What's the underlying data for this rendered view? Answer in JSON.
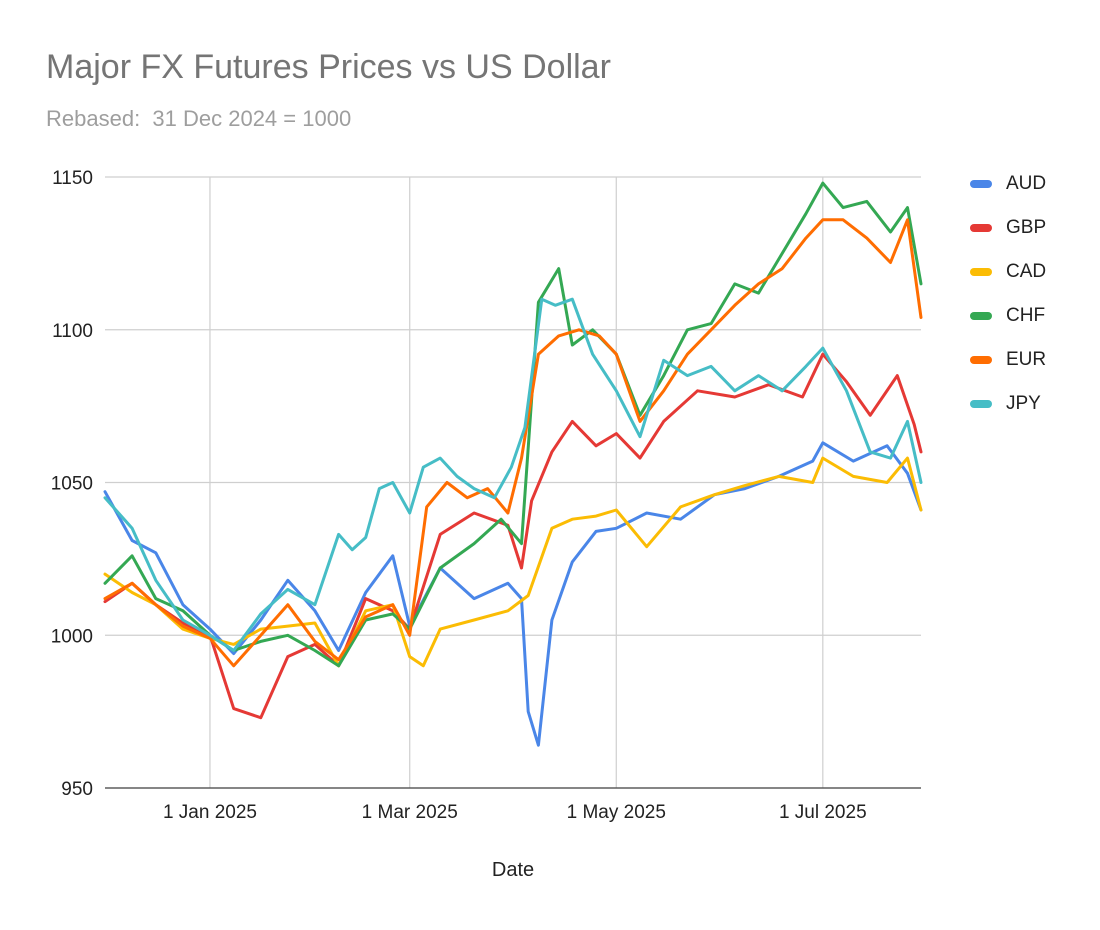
{
  "chart_data": {
    "type": "line",
    "title": "Major FX Futures Prices vs US Dollar",
    "subtitle": "Rebased:  31 Dec 2024 = 1000",
    "xlabel": "Date",
    "ylabel": "",
    "ylim": [
      950,
      1150
    ],
    "y_ticks": [
      950,
      1000,
      1050,
      1100,
      1150
    ],
    "x_ticks": [
      {
        "label": "1 Jan 2025",
        "date": "2025-01-01"
      },
      {
        "label": "1 Mar 2025",
        "date": "2025-03-01"
      },
      {
        "label": "1 May 2025",
        "date": "2025-05-01"
      },
      {
        "label": "1 Jul 2025",
        "date": "2025-07-01"
      }
    ],
    "x_range": [
      "2024-12-01",
      "2025-07-30"
    ],
    "grid": true,
    "legend_position": "right",
    "series": [
      {
        "name": "AUD",
        "color": "#4a86e8",
        "x": [
          "2024-12-01",
          "2024-12-09",
          "2024-12-16",
          "2024-12-24",
          "2025-01-01",
          "2025-01-08",
          "2025-01-16",
          "2025-01-24",
          "2025-02-01",
          "2025-02-08",
          "2025-02-16",
          "2025-02-24",
          "2025-03-01",
          "2025-03-10",
          "2025-03-20",
          "2025-03-30",
          "2025-04-03",
          "2025-04-05",
          "2025-04-08",
          "2025-04-12",
          "2025-04-18",
          "2025-04-25",
          "2025-05-01",
          "2025-05-10",
          "2025-05-20",
          "2025-05-30",
          "2025-06-08",
          "2025-06-18",
          "2025-06-28",
          "2025-07-01",
          "2025-07-10",
          "2025-07-20",
          "2025-07-26",
          "2025-07-30"
        ],
        "values": [
          1047,
          1031,
          1027,
          1010,
          1002,
          994,
          1005,
          1018,
          1008,
          995,
          1014,
          1026,
          1003,
          1022,
          1012,
          1017,
          1012,
          975,
          964,
          1005,
          1024,
          1034,
          1035,
          1040,
          1038,
          1046,
          1048,
          1052,
          1057,
          1063,
          1057,
          1062,
          1053,
          1041
        ]
      },
      {
        "name": "GBP",
        "color": "#e53935",
        "x": [
          "2024-12-01",
          "2024-12-09",
          "2024-12-16",
          "2024-12-24",
          "2025-01-01",
          "2025-01-08",
          "2025-01-16",
          "2025-01-24",
          "2025-02-01",
          "2025-02-08",
          "2025-02-16",
          "2025-02-24",
          "2025-03-01",
          "2025-03-10",
          "2025-03-20",
          "2025-03-30",
          "2025-04-03",
          "2025-04-06",
          "2025-04-12",
          "2025-04-18",
          "2025-04-25",
          "2025-05-01",
          "2025-05-08",
          "2025-05-15",
          "2025-05-25",
          "2025-06-05",
          "2025-06-15",
          "2025-06-25",
          "2025-07-01",
          "2025-07-08",
          "2025-07-15",
          "2025-07-23",
          "2025-07-28",
          "2025-07-30"
        ],
        "values": [
          1011,
          1017,
          1010,
          1004,
          1000,
          976,
          973,
          993,
          997,
          990,
          1012,
          1008,
          1002,
          1033,
          1040,
          1036,
          1022,
          1044,
          1060,
          1070,
          1062,
          1066,
          1058,
          1070,
          1080,
          1078,
          1082,
          1078,
          1092,
          1083,
          1072,
          1085,
          1069,
          1060
        ]
      },
      {
        "name": "CAD",
        "color": "#fbbc04",
        "x": [
          "2024-12-01",
          "2024-12-09",
          "2024-12-16",
          "2024-12-24",
          "2025-01-01",
          "2025-01-08",
          "2025-01-16",
          "2025-01-24",
          "2025-02-01",
          "2025-02-08",
          "2025-02-16",
          "2025-02-24",
          "2025-03-01",
          "2025-03-05",
          "2025-03-10",
          "2025-03-20",
          "2025-03-30",
          "2025-04-05",
          "2025-04-12",
          "2025-04-18",
          "2025-04-25",
          "2025-05-01",
          "2025-05-10",
          "2025-05-20",
          "2025-05-30",
          "2025-06-08",
          "2025-06-18",
          "2025-06-28",
          "2025-07-01",
          "2025-07-10",
          "2025-07-20",
          "2025-07-26",
          "2025-07-30"
        ],
        "values": [
          1020,
          1014,
          1010,
          1002,
          999,
          997,
          1002,
          1003,
          1004,
          990,
          1008,
          1010,
          993,
          990,
          1002,
          1005,
          1008,
          1013,
          1035,
          1038,
          1039,
          1041,
          1029,
          1042,
          1046,
          1049,
          1052,
          1050,
          1058,
          1052,
          1050,
          1058,
          1041
        ]
      },
      {
        "name": "CHF",
        "color": "#34a853",
        "x": [
          "2024-12-01",
          "2024-12-09",
          "2024-12-16",
          "2024-12-24",
          "2025-01-01",
          "2025-01-08",
          "2025-01-16",
          "2025-01-24",
          "2025-02-01",
          "2025-02-08",
          "2025-02-16",
          "2025-02-24",
          "2025-03-01",
          "2025-03-10",
          "2025-03-20",
          "2025-03-28",
          "2025-04-03",
          "2025-04-08",
          "2025-04-14",
          "2025-04-18",
          "2025-04-24",
          "2025-05-01",
          "2025-05-08",
          "2025-05-15",
          "2025-05-22",
          "2025-05-29",
          "2025-06-05",
          "2025-06-12",
          "2025-06-19",
          "2025-06-26",
          "2025-07-01",
          "2025-07-07",
          "2025-07-14",
          "2025-07-21",
          "2025-07-26",
          "2025-07-30"
        ],
        "values": [
          1017,
          1026,
          1012,
          1008,
          1000,
          995,
          998,
          1000,
          995,
          990,
          1005,
          1007,
          1002,
          1022,
          1030,
          1038,
          1030,
          1109,
          1120,
          1095,
          1100,
          1092,
          1072,
          1085,
          1100,
          1102,
          1115,
          1112,
          1125,
          1138,
          1148,
          1140,
          1142,
          1132,
          1140,
          1115
        ]
      },
      {
        "name": "EUR",
        "color": "#ff6d01",
        "x": [
          "2024-12-01",
          "2024-12-09",
          "2024-12-16",
          "2024-12-24",
          "2025-01-01",
          "2025-01-08",
          "2025-01-16",
          "2025-01-24",
          "2025-02-01",
          "2025-02-08",
          "2025-02-16",
          "2025-02-24",
          "2025-03-01",
          "2025-03-06",
          "2025-03-12",
          "2025-03-18",
          "2025-03-24",
          "2025-03-30",
          "2025-04-03",
          "2025-04-08",
          "2025-04-14",
          "2025-04-20",
          "2025-04-26",
          "2025-05-01",
          "2025-05-08",
          "2025-05-15",
          "2025-05-22",
          "2025-05-29",
          "2025-06-05",
          "2025-06-12",
          "2025-06-19",
          "2025-06-26",
          "2025-07-01",
          "2025-07-07",
          "2025-07-14",
          "2025-07-21",
          "2025-07-26",
          "2025-07-30"
        ],
        "values": [
          1012,
          1017,
          1010,
          1003,
          999,
          990,
          1000,
          1010,
          998,
          992,
          1006,
          1010,
          1000,
          1042,
          1050,
          1045,
          1048,
          1040,
          1058,
          1092,
          1098,
          1100,
          1098,
          1092,
          1070,
          1080,
          1092,
          1100,
          1108,
          1115,
          1120,
          1130,
          1136,
          1136,
          1130,
          1122,
          1136,
          1104
        ]
      },
      {
        "name": "JPY",
        "color": "#46bdc6",
        "x": [
          "2024-12-01",
          "2024-12-09",
          "2024-12-16",
          "2024-12-24",
          "2025-01-01",
          "2025-01-08",
          "2025-01-16",
          "2025-01-24",
          "2025-02-01",
          "2025-02-08",
          "2025-02-12",
          "2025-02-16",
          "2025-02-20",
          "2025-02-24",
          "2025-03-01",
          "2025-03-05",
          "2025-03-10",
          "2025-03-15",
          "2025-03-20",
          "2025-03-26",
          "2025-03-31",
          "2025-04-04",
          "2025-04-09",
          "2025-04-13",
          "2025-04-18",
          "2025-04-24",
          "2025-05-01",
          "2025-05-08",
          "2025-05-15",
          "2025-05-22",
          "2025-05-29",
          "2025-06-05",
          "2025-06-12",
          "2025-06-19",
          "2025-06-26",
          "2025-07-01",
          "2025-07-08",
          "2025-07-15",
          "2025-07-21",
          "2025-07-26",
          "2025-07-30"
        ],
        "values": [
          1045,
          1035,
          1018,
          1005,
          1000,
          995,
          1007,
          1015,
          1010,
          1033,
          1028,
          1032,
          1048,
          1050,
          1040,
          1055,
          1058,
          1052,
          1048,
          1045,
          1055,
          1068,
          1110,
          1108,
          1110,
          1092,
          1080,
          1065,
          1090,
          1085,
          1088,
          1080,
          1085,
          1080,
          1088,
          1094,
          1080,
          1060,
          1058,
          1070,
          1050
        ]
      }
    ]
  }
}
